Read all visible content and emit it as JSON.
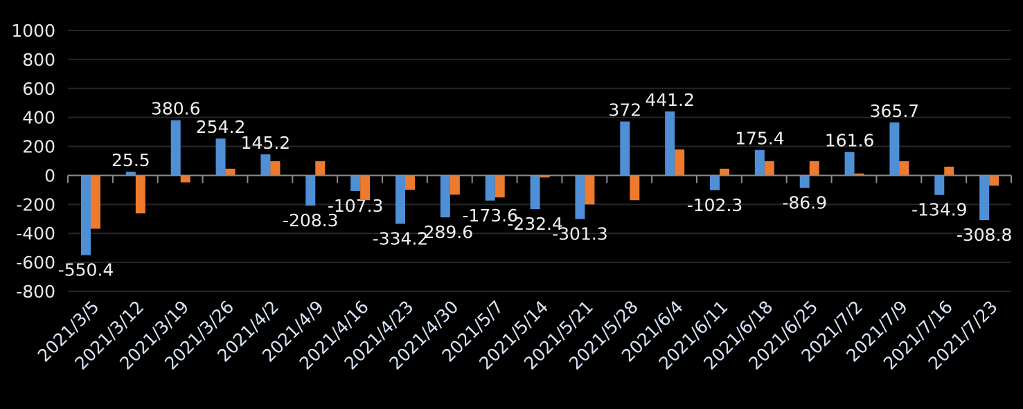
{
  "chart_data": {
    "type": "bar",
    "categories": [
      "2021/3/5",
      "2021/3/12",
      "2021/3/19",
      "2021/3/26",
      "2021/4/2",
      "2021/4/9",
      "2021/4/16",
      "2021/4/23",
      "2021/4/30",
      "2021/5/7",
      "2021/5/14",
      "2021/5/21",
      "2021/5/28",
      "2021/6/4",
      "2021/6/11",
      "2021/6/18",
      "2021/6/25",
      "2021/7/2",
      "2021/7/9",
      "2021/7/16",
      "2021/7/23"
    ],
    "series": [
      {
        "color": "#4f8fd6",
        "data_labels": true,
        "values": [
          -550.4,
          25.5,
          380.6,
          254.2,
          145.2,
          -208.3,
          -107.3,
          -334.2,
          -289.6,
          -173.6,
          -232.4,
          -301.3,
          372,
          441.2,
          -102.3,
          175.4,
          -86.9,
          161.6,
          365.7,
          -134.9,
          -308.8
        ]
      },
      {
        "color": "#ee7a2e",
        "data_labels": false,
        "values": [
          -368,
          -262,
          -48,
          46,
          98,
          98,
          -171,
          -100,
          -133,
          -152,
          -14,
          -200,
          -171,
          179,
          46,
          98,
          98,
          13,
          98,
          60,
          -71
        ]
      }
    ],
    "title": "",
    "xlabel": "",
    "ylabel": "",
    "ylim": [
      -800,
      1000
    ],
    "yticks": [
      1000,
      800,
      600,
      400,
      200,
      0,
      -200,
      -400,
      -600,
      -800
    ],
    "grid": true,
    "legend": "none",
    "background": "#000000"
  }
}
